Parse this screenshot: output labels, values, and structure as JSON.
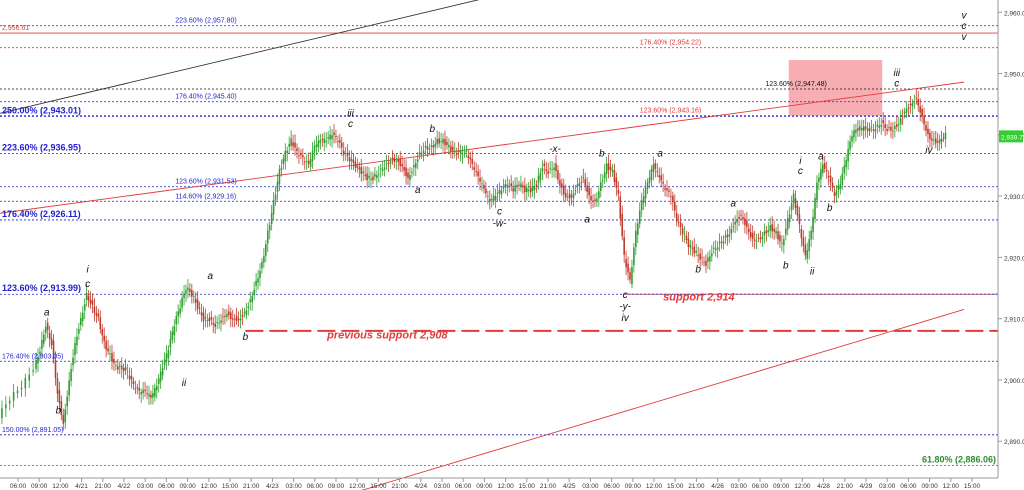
{
  "chart_data": {
    "type": "line",
    "title": "",
    "xlabel": "",
    "ylabel": "",
    "ylim": [
      2884,
      2962
    ],
    "y_ticks": [
      "2,960.00",
      "2,950.00",
      "2,940.00",
      "2,930.00",
      "2,920.00",
      "2,910.00",
      "2,900.00",
      "2,890.00"
    ],
    "y_tick_values": [
      2960,
      2950,
      2940,
      2930,
      2920,
      2910,
      2900,
      2890
    ],
    "x_ticks": [
      "06:00",
      "09:00",
      "12:00",
      "4/21",
      "21:00",
      "4/22",
      "03:00",
      "06:00",
      "09:00",
      "12:00",
      "15:00",
      "21:00",
      "4/23",
      "03:00",
      "06:00",
      "09:00",
      "12:00",
      "15:00",
      "21:00",
      "4/24",
      "03:00",
      "06:00",
      "09:00",
      "12:00",
      "15:00",
      "21:00",
      "4/25",
      "03:00",
      "06:00",
      "09:00",
      "12:00",
      "15:00",
      "21:00",
      "4/26",
      "03:00",
      "06:00",
      "09:00",
      "12:00",
      "4/28",
      "21:00",
      "4/29",
      "03:00",
      "06:00",
      "09:00",
      "12:00",
      "15:00"
    ],
    "x_range": [
      0,
      330
    ],
    "last_price": "2,939.75",
    "price_series": [
      [
        0,
        2894
      ],
      [
        4,
        2897
      ],
      [
        8,
        2899
      ],
      [
        12,
        2902
      ],
      [
        14,
        2905
      ],
      [
        16,
        2909
      ],
      [
        18,
        2906
      ],
      [
        20,
        2898
      ],
      [
        22,
        2893
      ],
      [
        24,
        2900
      ],
      [
        26,
        2906
      ],
      [
        28,
        2910
      ],
      [
        30,
        2914
      ],
      [
        32,
        2912
      ],
      [
        34,
        2910
      ],
      [
        36,
        2906
      ],
      [
        38,
        2904
      ],
      [
        40,
        2902
      ],
      [
        42,
        2902
      ],
      [
        44,
        2901
      ],
      [
        46,
        2899
      ],
      [
        48,
        2898
      ],
      [
        50,
        2898
      ],
      [
        52,
        2897
      ],
      [
        54,
        2899
      ],
      [
        56,
        2902
      ],
      [
        58,
        2905
      ],
      [
        60,
        2909
      ],
      [
        62,
        2912
      ],
      [
        64,
        2915
      ],
      [
        66,
        2914
      ],
      [
        68,
        2912
      ],
      [
        70,
        2910
      ],
      [
        72,
        2910
      ],
      [
        74,
        2909
      ],
      [
        76,
        2910
      ],
      [
        78,
        2911
      ],
      [
        80,
        2910
      ],
      [
        82,
        2910
      ],
      [
        84,
        2911
      ],
      [
        86,
        2913
      ],
      [
        88,
        2916
      ],
      [
        90,
        2919
      ],
      [
        92,
        2924
      ],
      [
        94,
        2929
      ],
      [
        96,
        2934
      ],
      [
        98,
        2937
      ],
      [
        100,
        2939
      ],
      [
        102,
        2937
      ],
      [
        104,
        2936
      ],
      [
        106,
        2935
      ],
      [
        108,
        2938
      ],
      [
        110,
        2939
      ],
      [
        112,
        2939
      ],
      [
        114,
        2940
      ],
      [
        116,
        2939
      ],
      [
        118,
        2937
      ],
      [
        120,
        2936
      ],
      [
        122,
        2935
      ],
      [
        124,
        2934
      ],
      [
        126,
        2933
      ],
      [
        128,
        2933
      ],
      [
        130,
        2934
      ],
      [
        132,
        2935
      ],
      [
        134,
        2936
      ],
      [
        136,
        2936
      ],
      [
        138,
        2935
      ],
      [
        140,
        2933
      ],
      [
        142,
        2935
      ],
      [
        144,
        2937
      ],
      [
        146,
        2938
      ],
      [
        148,
        2938
      ],
      [
        150,
        2939
      ],
      [
        152,
        2939
      ],
      [
        154,
        2938
      ],
      [
        156,
        2937
      ],
      [
        158,
        2937
      ],
      [
        160,
        2937
      ],
      [
        162,
        2935
      ],
      [
        164,
        2933
      ],
      [
        166,
        2931
      ],
      [
        168,
        2929
      ],
      [
        170,
        2930
      ],
      [
        172,
        2931
      ],
      [
        174,
        2932
      ],
      [
        176,
        2931
      ],
      [
        178,
        2932
      ],
      [
        180,
        2931
      ],
      [
        182,
        2931
      ],
      [
        184,
        2932
      ],
      [
        186,
        2935
      ],
      [
        188,
        2934
      ],
      [
        190,
        2935
      ],
      [
        192,
        2932
      ],
      [
        194,
        2930
      ],
      [
        196,
        2930
      ],
      [
        198,
        2932
      ],
      [
        200,
        2933
      ],
      [
        202,
        2930
      ],
      [
        204,
        2929
      ],
      [
        206,
        2932
      ],
      [
        208,
        2935
      ],
      [
        210,
        2934
      ],
      [
        212,
        2930
      ],
      [
        214,
        2920
      ],
      [
        216,
        2916
      ],
      [
        218,
        2924
      ],
      [
        220,
        2929
      ],
      [
        222,
        2932
      ],
      [
        224,
        2935
      ],
      [
        226,
        2933
      ],
      [
        228,
        2931
      ],
      [
        230,
        2930
      ],
      [
        232,
        2926
      ],
      [
        234,
        2924
      ],
      [
        236,
        2922
      ],
      [
        238,
        2921
      ],
      [
        240,
        2920
      ],
      [
        242,
        2919
      ],
      [
        244,
        2921
      ],
      [
        246,
        2922
      ],
      [
        248,
        2923
      ],
      [
        250,
        2924
      ],
      [
        252,
        2926
      ],
      [
        254,
        2927
      ],
      [
        256,
        2925
      ],
      [
        258,
        2923
      ],
      [
        260,
        2923
      ],
      [
        262,
        2924
      ],
      [
        264,
        2925
      ],
      [
        266,
        2924
      ],
      [
        268,
        2922
      ],
      [
        270,
        2926
      ],
      [
        272,
        2930
      ],
      [
        274,
        2925
      ],
      [
        276,
        2920
      ],
      [
        278,
        2924
      ],
      [
        280,
        2932
      ],
      [
        282,
        2935
      ],
      [
        284,
        2933
      ],
      [
        286,
        2930
      ],
      [
        288,
        2932
      ],
      [
        290,
        2936
      ],
      [
        292,
        2940
      ],
      [
        294,
        2941
      ],
      [
        296,
        2941
      ],
      [
        298,
        2941
      ],
      [
        300,
        2941
      ],
      [
        302,
        2942
      ],
      [
        304,
        2941
      ],
      [
        306,
        2941
      ],
      [
        308,
        2942
      ],
      [
        310,
        2944
      ],
      [
        312,
        2945
      ],
      [
        314,
        2946
      ],
      [
        316,
        2943
      ],
      [
        318,
        2940
      ],
      [
        320,
        2939
      ],
      [
        322,
        2939
      ],
      [
        324,
        2940
      ]
    ],
    "horizontal_levels": [
      {
        "value": 2957.8,
        "label": "223.60% (2,957.80)",
        "color": "#1f1fcf",
        "style": "dotted"
      },
      {
        "value": 2956.61,
        "label": "2,956.61",
        "color": "#e23b3b",
        "style": "solid"
      },
      {
        "value": 2954.22,
        "label": "176.40% (2,954.22)",
        "color": "#e23b3b",
        "style": "dotted"
      },
      {
        "value": 2947.48,
        "label": "123.60% (2,947.48)",
        "color": "#111111",
        "style": "dotted"
      },
      {
        "value": 2945.4,
        "label": "176.40% (2,945.40)",
        "color": "#1f1fcf",
        "style": "dotted"
      },
      {
        "value": 2943.16,
        "label": "123.60% (2,943.16)",
        "color": "#e23b3b",
        "style": "dotted"
      },
      {
        "value": 2943.01,
        "label": "250.00% (2,943.01)",
        "color": "#1f1fcf",
        "style": "dotted",
        "bold": true
      },
      {
        "value": 2936.95,
        "label": "223.60% (2,936.95)",
        "color": "#1f1fcf",
        "style": "dotted",
        "bold": true
      },
      {
        "value": 2931.53,
        "label": "123.60% (2,931.53)",
        "color": "#1f1fcf",
        "style": "dotted"
      },
      {
        "value": 2929.16,
        "label": "114.60% (2,929.16)",
        "color": "#1f1fcf",
        "style": "dotted"
      },
      {
        "value": 2926.11,
        "label": "176.40% (2,926.11)",
        "color": "#1f1fcf",
        "style": "dotted",
        "bold": true
      },
      {
        "value": 2914,
        "label": "support 2,914",
        "color": "#e23b3b",
        "style": "solid"
      },
      {
        "value": 2913.99,
        "label": "123.60% (2,913.99)",
        "color": "#1f1fcf",
        "style": "dotted",
        "bold": true
      },
      {
        "value": 2908,
        "label": "previous support 2,908",
        "color": "#e23b3b",
        "style": "dashed"
      },
      {
        "value": 2903.05,
        "label": "176.40% (2,903.05)",
        "color": "#1f1fcf",
        "style": "dotted"
      },
      {
        "value": 2891.05,
        "label": "150.00% (2,891.05)",
        "color": "#1f1fcf",
        "style": "dotted"
      },
      {
        "value": 2886.06,
        "label": "61.80% (2,886.06)",
        "color": "#2e8b2e",
        "style": "dotted",
        "bold": true
      }
    ],
    "trend_lines": [
      {
        "color": "#333333",
        "from": [
          0,
          2943.5
        ],
        "to": [
          190,
          2965
        ]
      },
      {
        "color": "#e23b3b",
        "from": [
          0,
          2927.2
        ],
        "to": [
          330,
          2948.6
        ]
      },
      {
        "color": "#e23b3b",
        "from": [
          110,
          2880
        ],
        "to": [
          330,
          2911.5
        ]
      }
    ],
    "highlight_zone": {
      "x_from": 270,
      "x_to": 302,
      "y_from": 2943.1,
      "y_to": 2952.2,
      "color": "#f6a0a6"
    },
    "wave_labels": [
      {
        "x": 16,
        "y": 2910.5,
        "text": "a"
      },
      {
        "x": 20,
        "y": 2894.5,
        "text": "b"
      },
      {
        "x": 30,
        "y": 2917.5,
        "text": "i"
      },
      {
        "x": 30,
        "y": 2915.2,
        "text": "c"
      },
      {
        "x": 63,
        "y": 2899.0,
        "text": "ii"
      },
      {
        "x": 72,
        "y": 2916.5,
        "text": "a"
      },
      {
        "x": 84,
        "y": 2906.5,
        "text": "b"
      },
      {
        "x": 120,
        "y": 2943.0,
        "text": "iii"
      },
      {
        "x": 120,
        "y": 2941.3,
        "text": "c"
      },
      {
        "x": 148,
        "y": 2940.5,
        "text": "b"
      },
      {
        "x": 143,
        "y": 2930.5,
        "text": "a"
      },
      {
        "x": 171,
        "y": 2927.0,
        "text": "c"
      },
      {
        "x": 171,
        "y": 2925.0,
        "text": "-w-"
      },
      {
        "x": 190,
        "y": 2937.2,
        "text": "-x-"
      },
      {
        "x": 206,
        "y": 2936.5,
        "text": "b"
      },
      {
        "x": 201,
        "y": 2925.7,
        "text": "a"
      },
      {
        "x": 214,
        "y": 2913.4,
        "text": "c"
      },
      {
        "x": 214,
        "y": 2911.5,
        "text": "-y-"
      },
      {
        "x": 214,
        "y": 2909.6,
        "text": "iv"
      },
      {
        "x": 226,
        "y": 2936.5,
        "text": "a"
      },
      {
        "x": 239,
        "y": 2917.5,
        "text": "b"
      },
      {
        "x": 251,
        "y": 2928.3,
        "text": "a"
      },
      {
        "x": 269,
        "y": 2918.2,
        "text": "b"
      },
      {
        "x": 274,
        "y": 2935.2,
        "text": "i"
      },
      {
        "x": 274,
        "y": 2933.6,
        "text": "c"
      },
      {
        "x": 278,
        "y": 2917.2,
        "text": "ii"
      },
      {
        "x": 281,
        "y": 2936.0,
        "text": "a"
      },
      {
        "x": 284,
        "y": 2927.6,
        "text": "b"
      },
      {
        "x": 307,
        "y": 2949.6,
        "text": "iii"
      },
      {
        "x": 307,
        "y": 2947.9,
        "text": "c"
      },
      {
        "x": 318,
        "y": 2937.0,
        "text": "iv"
      },
      {
        "x": 330,
        "y": 2959.0,
        "text": "v"
      },
      {
        "x": 330,
        "y": 2957.3,
        "text": "c"
      },
      {
        "x": 330,
        "y": 2955.5,
        "text": "v"
      }
    ],
    "annotations": [
      {
        "x": 227,
        "y": 2913.0,
        "text": "support 2,914",
        "color": "#e23b3b"
      },
      {
        "x": 112,
        "y": 2906.8,
        "text": "previous support 2,908",
        "color": "#e23b3b"
      }
    ],
    "colors": {
      "up": "#2e9e2e",
      "down": "#c0392b",
      "last_price_bg": "#33cc33"
    }
  }
}
